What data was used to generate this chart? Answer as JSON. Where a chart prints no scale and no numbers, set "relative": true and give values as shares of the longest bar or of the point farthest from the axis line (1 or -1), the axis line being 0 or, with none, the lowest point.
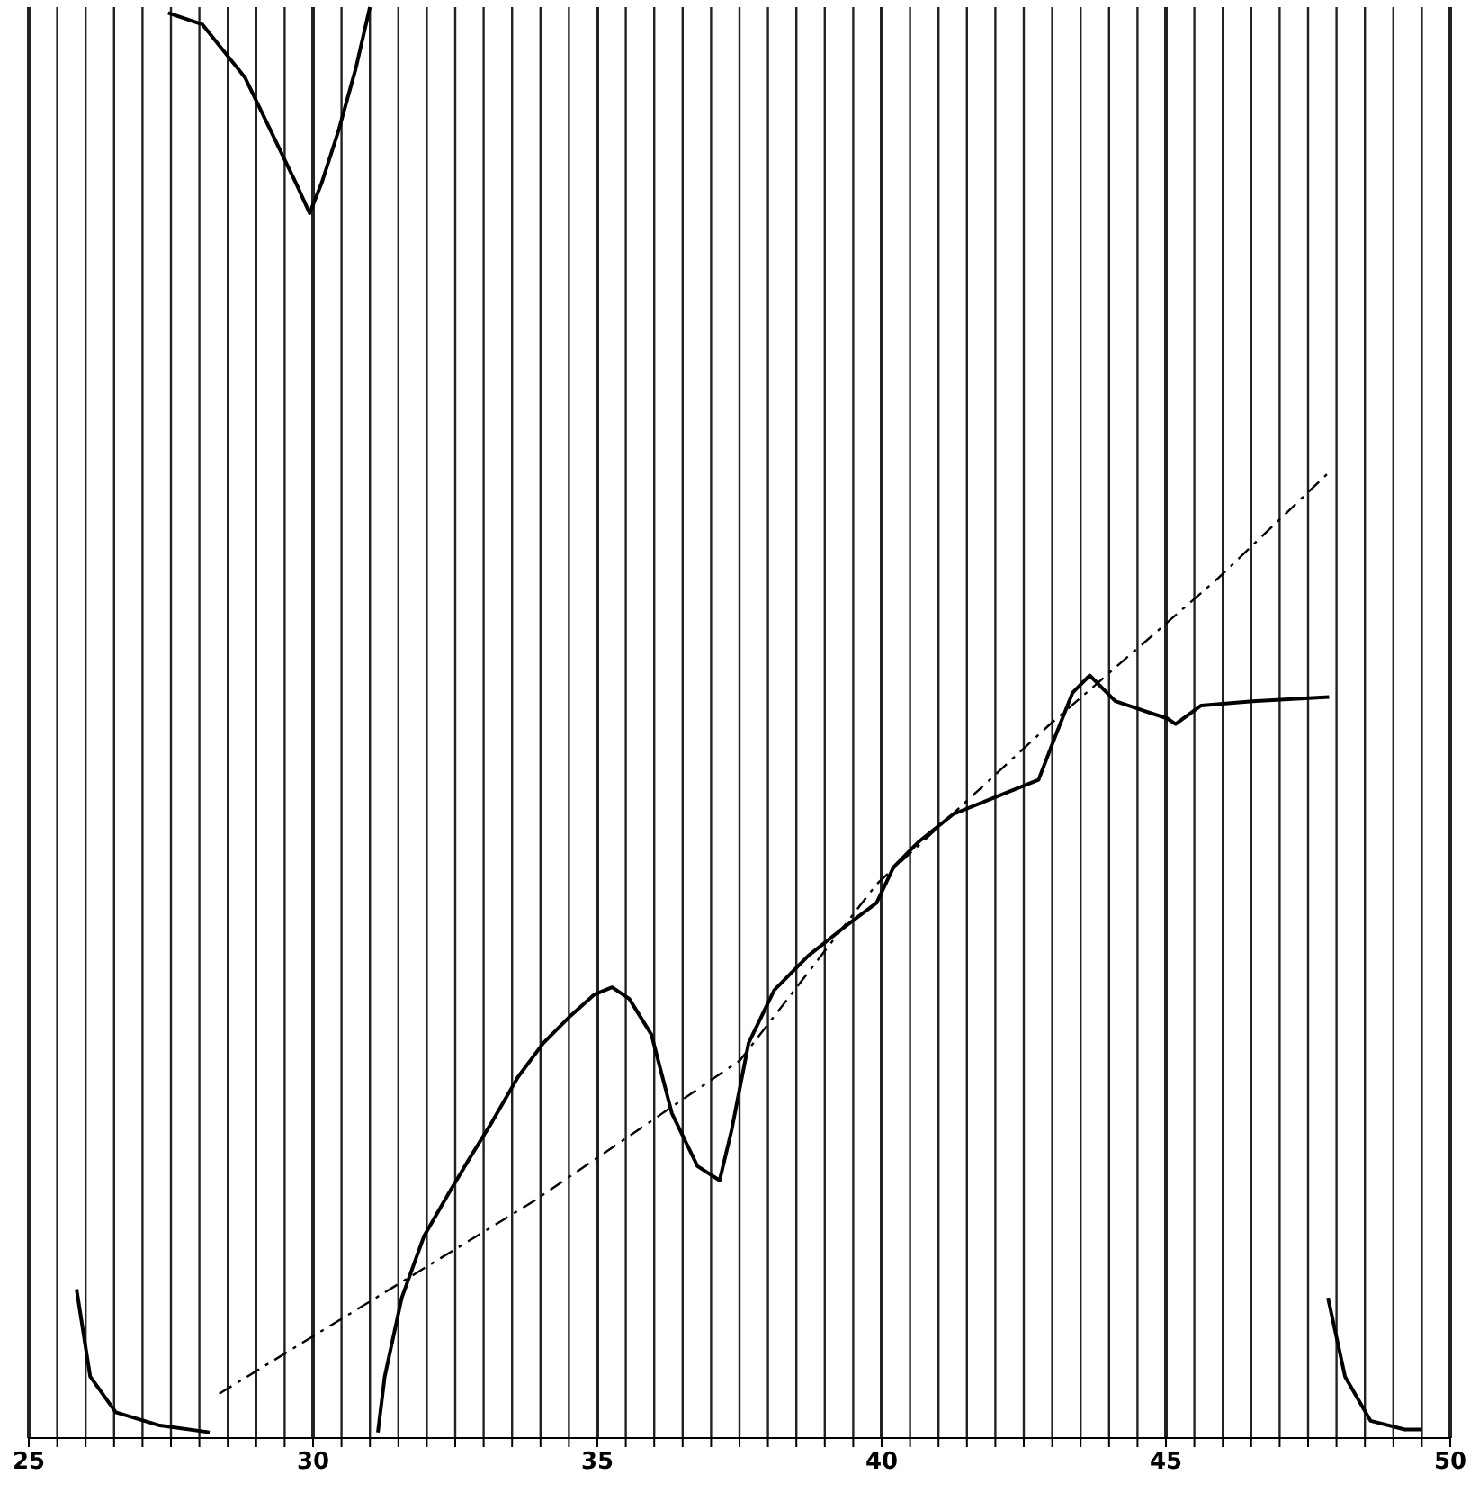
{
  "chart_data": {
    "type": "line",
    "relative": true,
    "xlim": [
      25,
      50
    ],
    "xticks": [
      25,
      {
        "value": 25.5,
        "label": null
      },
      {
        "value": 26,
        "label": null
      },
      {
        "value": 26.5,
        "label": null
      },
      {
        "value": 27,
        "label": null
      },
      {
        "value": 27.5,
        "label": null
      },
      {
        "value": 28,
        "label": null
      },
      {
        "value": 28.5,
        "label": null
      },
      {
        "value": 29,
        "label": null
      },
      {
        "value": 29.5,
        "label": null
      },
      30,
      {
        "value": 30.5,
        "label": null
      },
      {
        "value": 31,
        "label": null
      },
      {
        "value": 31.5,
        "label": null
      },
      {
        "value": 32,
        "label": null
      },
      {
        "value": 32.5,
        "label": null
      },
      {
        "value": 33,
        "label": null
      },
      {
        "value": 33.5,
        "label": null
      },
      {
        "value": 34,
        "label": null
      },
      {
        "value": 34.5,
        "label": null
      },
      35,
      {
        "value": 35.5,
        "label": null
      },
      {
        "value": 36,
        "label": null
      },
      {
        "value": 36.5,
        "label": null
      },
      {
        "value": 37,
        "label": null
      },
      {
        "value": 37.5,
        "label": null
      },
      {
        "value": 38,
        "label": null
      },
      {
        "value": 38.5,
        "label": null
      },
      {
        "value": 39,
        "label": null
      },
      {
        "value": 39.5,
        "label": null
      },
      40,
      {
        "value": 40.5,
        "label": null
      },
      {
        "value": 41,
        "label": null
      },
      {
        "value": 41.5,
        "label": null
      },
      {
        "value": 42,
        "label": null
      },
      {
        "value": 42.5,
        "label": null
      },
      {
        "value": 43,
        "label": null
      },
      {
        "value": 43.5,
        "label": null
      },
      {
        "value": 44,
        "label": null
      },
      {
        "value": 44.5,
        "label": null
      },
      45,
      {
        "value": 45.5,
        "label": null
      },
      {
        "value": 46,
        "label": null
      },
      {
        "value": 46.5,
        "label": null
      },
      {
        "value": 47,
        "label": null
      },
      {
        "value": 47.5,
        "label": null
      },
      {
        "value": 48,
        "label": null
      },
      {
        "value": 48.5,
        "label": null
      },
      {
        "value": 49,
        "label": null
      },
      {
        "value": 49.5,
        "label": null
      },
      50
    ],
    "grid": "x",
    "line_style": "solid",
    "marker": "none",
    "series": [
      {
        "color": "#000000",
        "x": [
          27.45,
          28.05,
          28.8,
          29.25,
          29.7,
          29.94,
          30.15,
          30.45,
          30.75,
          31.0
        ],
        "values": [
          0.996,
          0.988,
          0.951,
          0.914,
          0.877,
          0.856,
          0.877,
          0.914,
          0.957,
          1
        ]
      },
      {
        "color": "#000000",
        "x": [
          25.84,
          26.08,
          26.53,
          27.28,
          28.18
        ],
        "values": [
          0.104,
          0.043,
          0.018,
          0.009,
          0.004
        ]
      },
      {
        "color": "#000000",
        "x": [
          47.85,
          48.15,
          48.6,
          49.2,
          49.5
        ],
        "values": [
          0.098,
          0.043,
          0.012,
          0.006,
          0.006
        ]
      },
      {
        "color": "#000000",
        "x": [
          31.14,
          31.26,
          31.56,
          31.95,
          32.4,
          32.76,
          33.15,
          33.6,
          34.05,
          34.5,
          34.95,
          35.26,
          35.56,
          35.95,
          36.31,
          36.76,
          37.15,
          37.36,
          37.66,
          38.11,
          38.71,
          39.31,
          39.91,
          40.21,
          40.66,
          41.26,
          42.01,
          42.76,
          43.06,
          43.36,
          43.66,
          44.11,
          44.56,
          45.02,
          45.17,
          45.62,
          46.52,
          47.87
        ],
        "values": [
          0.004,
          0.043,
          0.098,
          0.141,
          0.172,
          0.196,
          0.221,
          0.252,
          0.276,
          0.294,
          0.31,
          0.315,
          0.307,
          0.282,
          0.227,
          0.19,
          0.18,
          0.215,
          0.276,
          0.313,
          0.337,
          0.356,
          0.374,
          0.399,
          0.417,
          0.436,
          0.448,
          0.46,
          0.491,
          0.521,
          0.533,
          0.515,
          0.509,
          0.503,
          0.499,
          0.512,
          0.515,
          0.518
        ]
      },
      {
        "color": "#000000",
        "line_style": "dashed",
        "x": [
          28.35,
          33.9,
          37.51,
          39.91,
          42.91,
          45.92,
          47.87
        ],
        "values": [
          0.031,
          0.166,
          0.264,
          0.387,
          0.497,
          0.601,
          0.675
        ]
      }
    ]
  }
}
